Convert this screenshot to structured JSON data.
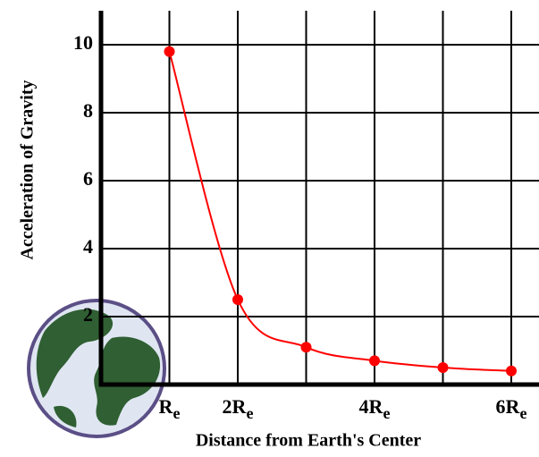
{
  "chart_data": {
    "type": "line",
    "ylabel": "Acceleration of Gravity",
    "xlabel": "Distance from Earth's Center",
    "x": [
      1,
      2,
      3,
      4,
      5,
      6
    ],
    "series": [
      {
        "color": "#ff0000",
        "values": [
          9.8,
          2.5,
          1.1,
          0.7,
          0.5,
          0.4
        ]
      }
    ],
    "xlim": [
      0,
      6.4
    ],
    "ylim": [
      0,
      11
    ],
    "xticks": [
      {
        "value": 1,
        "label": "R",
        "subscript": "e"
      },
      {
        "value": 2,
        "label": "2R",
        "subscript": "e"
      },
      {
        "value": 3,
        "label": null
      },
      {
        "value": 4,
        "label": "4R",
        "subscript": "e"
      },
      {
        "value": 5,
        "label": null
      },
      {
        "value": 6,
        "label": "6R",
        "subscript": "e"
      }
    ],
    "yticks": [
      2,
      4,
      6,
      8,
      10
    ],
    "grid": true
  }
}
